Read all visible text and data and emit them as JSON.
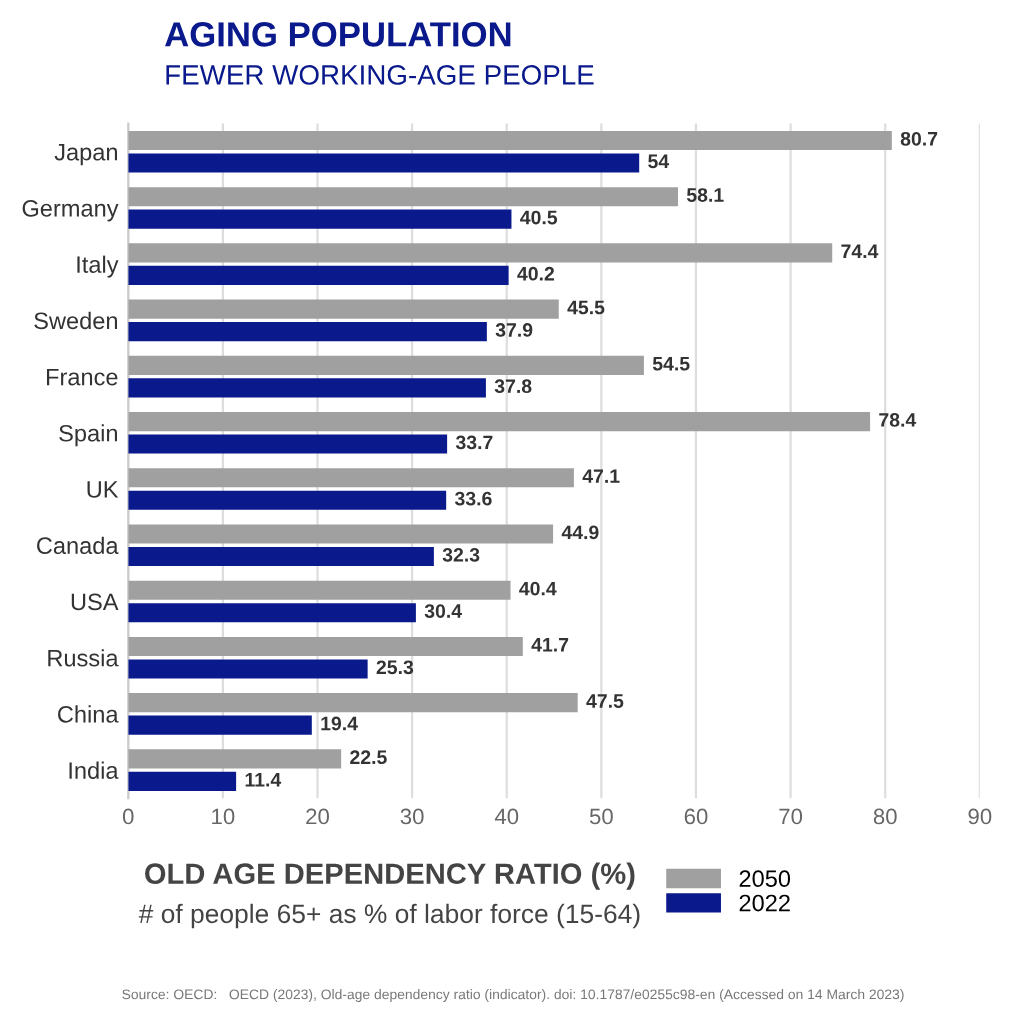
{
  "chart_data": {
    "type": "bar",
    "orientation": "horizontal",
    "title": "AGING POPULATION",
    "subtitle": "FEWER WORKING-AGE PEOPLE",
    "xlabel": "OLD AGE DEPENDENCY RATIO (%)",
    "categories": [
      "Japan",
      "Germany",
      "Italy",
      "Sweden",
      "France",
      "Spain",
      "UK",
      "Canada",
      "USA",
      "Russia",
      "China",
      "India"
    ],
    "series": [
      {
        "name": "2050",
        "color": "#a0a0a0",
        "values": [
          80.7,
          58.1,
          74.4,
          45.5,
          54.5,
          78.4,
          47.1,
          44.9,
          40.4,
          41.7,
          47.5,
          22.5
        ]
      },
      {
        "name": "2022",
        "color": "#0a1a8c",
        "values": [
          54,
          40.5,
          40.2,
          37.9,
          37.8,
          33.7,
          33.6,
          32.3,
          30.4,
          25.3,
          19.4,
          11.4
        ]
      }
    ],
    "xlim": [
      0,
      90
    ],
    "xticks": [
      0,
      10,
      20,
      30,
      40,
      50,
      60,
      70,
      80,
      90
    ],
    "grid": "x",
    "legend": "bottom",
    "data_labels": true,
    "annotations": [
      "# of people 65+ as % of labor force (15-64)",
      "Source: OECD:   OECD (2023), Old-age dependency ratio (indicator). doi: 10.1787/e0255c98-en (Accessed on 14 March 2023)"
    ]
  }
}
